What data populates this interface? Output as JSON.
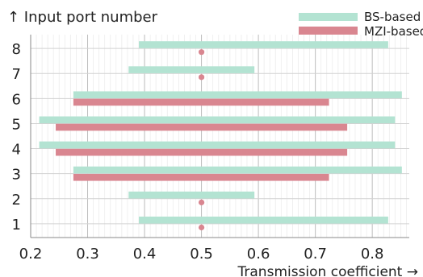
{
  "chart_data": {
    "type": "bar",
    "orientation": "horizontal-ranges",
    "ylabel": "↑ Input port number",
    "xlabel": "Transmission coefficient →",
    "xlim": [
      0.2,
      0.865
    ],
    "ylim": [
      0.45,
      8.55
    ],
    "x_ticks": [
      "0.2",
      "0.3",
      "0.4",
      "0.5",
      "0.6",
      "0.7",
      "0.8"
    ],
    "y_ticks": [
      "1",
      "2",
      "3",
      "4",
      "5",
      "6",
      "7",
      "8"
    ],
    "grid": true,
    "legend_position": "top-right",
    "series": [
      {
        "name": "BS-based",
        "color": "#b3e3d2",
        "ranges": [
          {
            "port": 1,
            "min": 0.39,
            "max": 0.828
          },
          {
            "port": 2,
            "min": 0.372,
            "max": 0.593
          },
          {
            "port": 3,
            "min": 0.275,
            "max": 0.852
          },
          {
            "port": 4,
            "min": 0.215,
            "max": 0.84
          },
          {
            "port": 5,
            "min": 0.215,
            "max": 0.84
          },
          {
            "port": 6,
            "min": 0.275,
            "max": 0.852
          },
          {
            "port": 7,
            "min": 0.372,
            "max": 0.593
          },
          {
            "port": 8,
            "min": 0.39,
            "max": 0.828
          }
        ]
      },
      {
        "name": "MZI-based",
        "color": "#d98690",
        "ranges": [
          {
            "port": 1,
            "min": 0.5,
            "max": 0.5
          },
          {
            "port": 2,
            "min": 0.5,
            "max": 0.5
          },
          {
            "port": 3,
            "min": 0.275,
            "max": 0.724
          },
          {
            "port": 4,
            "min": 0.244,
            "max": 0.756
          },
          {
            "port": 5,
            "min": 0.244,
            "max": 0.756
          },
          {
            "port": 6,
            "min": 0.275,
            "max": 0.724
          },
          {
            "port": 7,
            "min": 0.5,
            "max": 0.5
          },
          {
            "port": 8,
            "min": 0.5,
            "max": 0.5
          }
        ]
      }
    ]
  }
}
